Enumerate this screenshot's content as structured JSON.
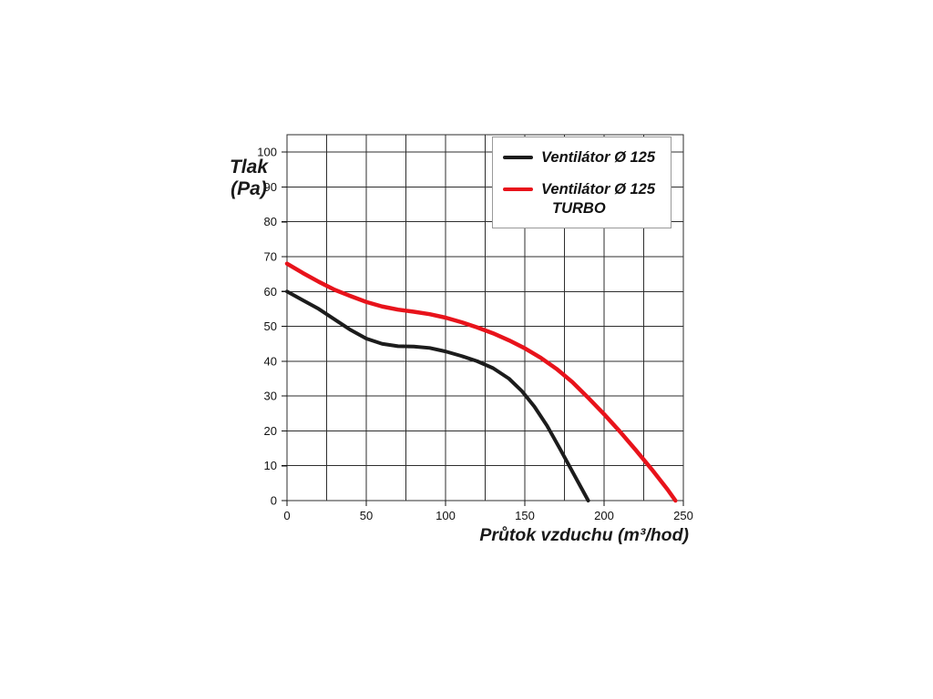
{
  "page": {
    "background": "#ffffff"
  },
  "chart_data": {
    "type": "line",
    "title": "",
    "xlabel": "Průtok vzduchu (m³/hod)",
    "ylabel_line1": "Tlak",
    "ylabel_line2": "(Pa)",
    "xlim": [
      0,
      250
    ],
    "ylim": [
      0,
      105
    ],
    "xticks": [
      0,
      50,
      100,
      150,
      200,
      250
    ],
    "yticks": [
      0,
      10,
      20,
      30,
      40,
      50,
      60,
      70,
      80,
      90,
      100
    ],
    "x_grid_step": 25,
    "y_grid_step": 10,
    "grid": true,
    "grid_color": "#2e2e2e",
    "tick_label_color": "#111111",
    "legend_position": "top-right",
    "series": [
      {
        "name": "Ventilátor Ø 125",
        "color": "#1c1c1c",
        "points": [
          [
            0,
            60
          ],
          [
            10,
            57.5
          ],
          [
            20,
            55
          ],
          [
            30,
            52
          ],
          [
            40,
            49
          ],
          [
            50,
            46.5
          ],
          [
            60,
            45
          ],
          [
            70,
            44.3
          ],
          [
            80,
            44.2
          ],
          [
            90,
            43.8
          ],
          [
            100,
            42.8
          ],
          [
            110,
            41.5
          ],
          [
            120,
            40
          ],
          [
            130,
            38
          ],
          [
            140,
            35
          ],
          [
            148,
            31.5
          ],
          [
            156,
            27
          ],
          [
            164,
            21.5
          ],
          [
            172,
            15
          ],
          [
            181,
            7.5
          ],
          [
            190,
            0
          ]
        ]
      },
      {
        "name": "Ventilátor Ø 125 TURBO",
        "color": "#e8131b",
        "points": [
          [
            0,
            68
          ],
          [
            10,
            65.3
          ],
          [
            20,
            62.8
          ],
          [
            30,
            60.5
          ],
          [
            40,
            58.7
          ],
          [
            50,
            57
          ],
          [
            60,
            55.7
          ],
          [
            70,
            54.8
          ],
          [
            80,
            54.2
          ],
          [
            90,
            53.5
          ],
          [
            100,
            52.5
          ],
          [
            110,
            51.2
          ],
          [
            120,
            49.7
          ],
          [
            130,
            48
          ],
          [
            140,
            46
          ],
          [
            150,
            43.7
          ],
          [
            160,
            41
          ],
          [
            170,
            37.8
          ],
          [
            180,
            34
          ],
          [
            190,
            29.5
          ],
          [
            200,
            24.8
          ],
          [
            210,
            19.8
          ],
          [
            220,
            14.5
          ],
          [
            230,
            9
          ],
          [
            240,
            3.2
          ],
          [
            245,
            0
          ]
        ]
      }
    ]
  },
  "legend": {
    "items": [
      {
        "line1": "Ventilátor Ø 125",
        "line2": ""
      },
      {
        "line1": "Ventilátor Ø 125",
        "line2": "TURBO"
      }
    ]
  }
}
